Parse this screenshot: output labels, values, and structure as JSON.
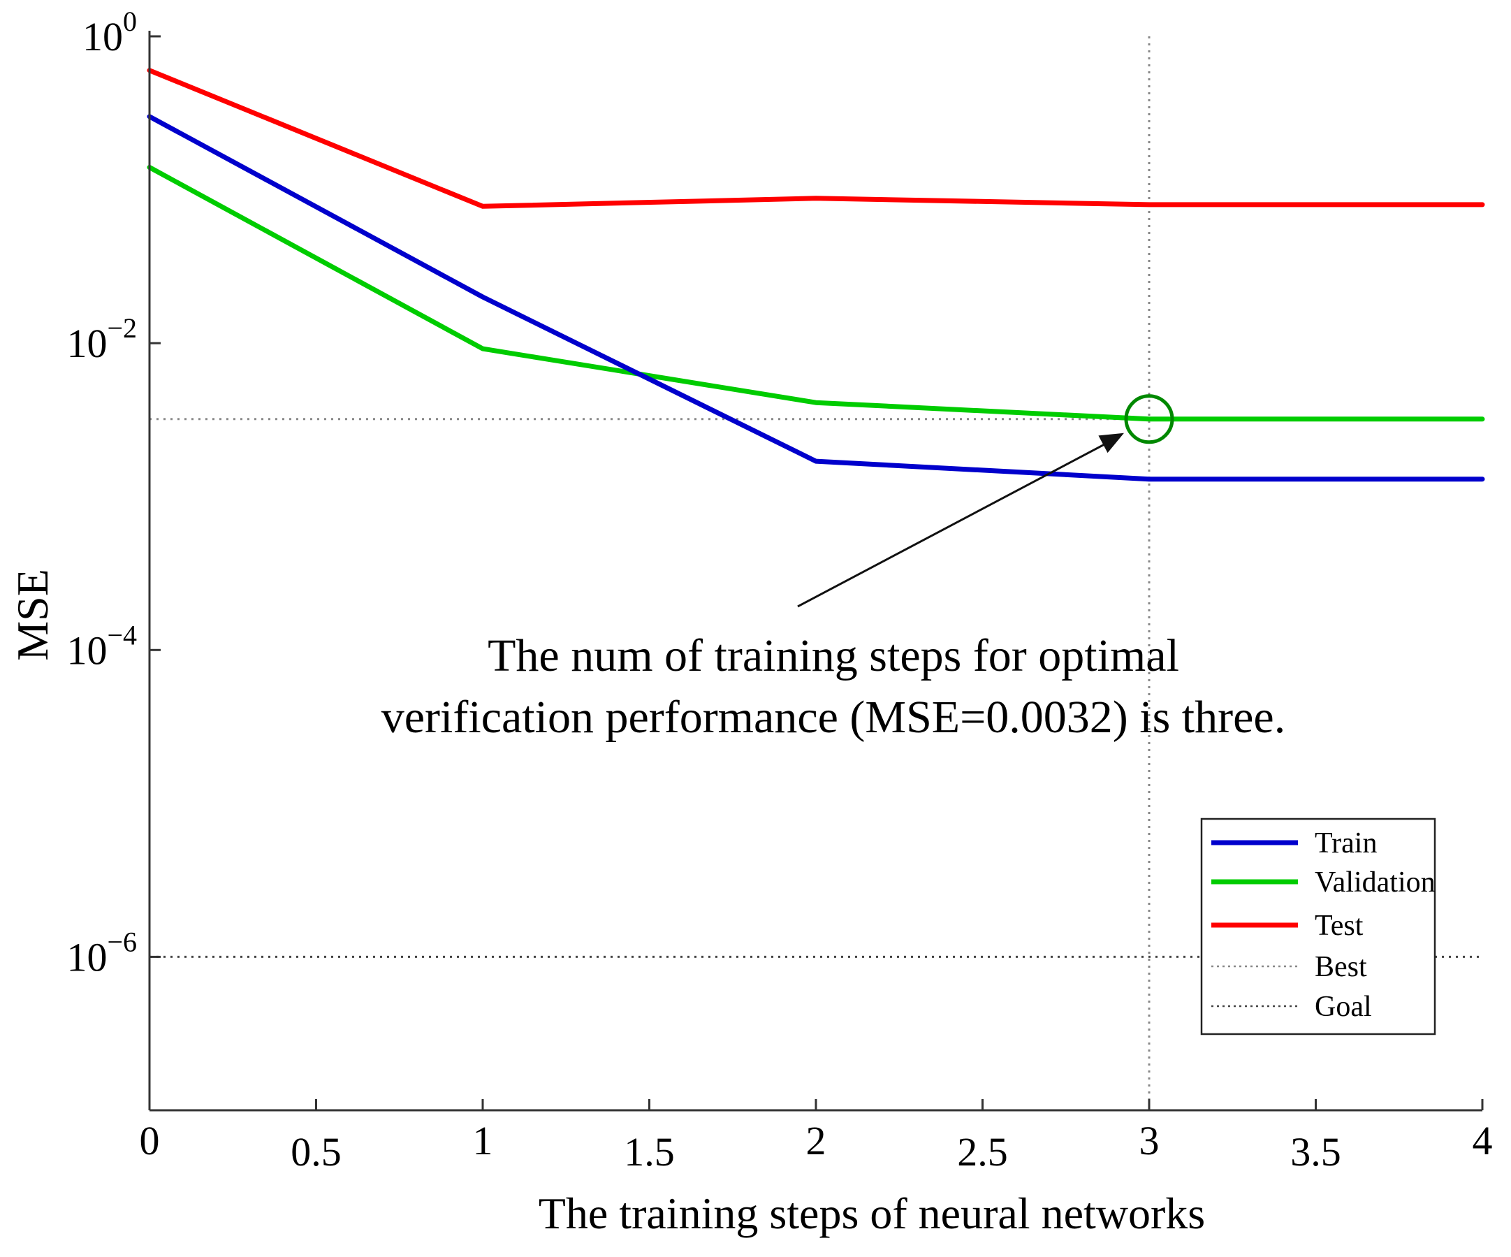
{
  "chart_data": {
    "type": "line",
    "x": [
      0,
      1,
      2,
      3,
      4
    ],
    "series": [
      {
        "name": "Train",
        "color": "#0000cc",
        "values": [
          0.3,
          0.02,
          0.0017,
          0.0013,
          0.0013
        ]
      },
      {
        "name": "Validation",
        "color": "#00cc00",
        "values": [
          0.14,
          0.0092,
          0.0041,
          0.0032,
          0.0032
        ]
      },
      {
        "name": "Test",
        "color": "#ff0000",
        "values": [
          0.6,
          0.078,
          0.088,
          0.08,
          0.08
        ]
      }
    ],
    "reference_lines": [
      {
        "name": "Best",
        "orientation": "both",
        "x": 3,
        "y": 0.0032,
        "color": "#888888",
        "style": "dotted"
      },
      {
        "name": "Goal",
        "orientation": "horizontal",
        "y": 1e-06,
        "color": "#444444",
        "style": "dotted"
      }
    ],
    "marker": {
      "x": 3,
      "y": 0.0032,
      "shape": "circle",
      "color": "#008800"
    },
    "xlabel": "The training steps of neural networks",
    "ylabel": "MSE",
    "xlim": [
      0,
      4
    ],
    "ylim": [
      1e-07,
      1
    ],
    "yscale": "log",
    "xticks": [
      0,
      0.5,
      1,
      1.5,
      2,
      2.5,
      3,
      3.5,
      4
    ],
    "xtick_labels": [
      "0",
      "0.5",
      "1",
      "1.5",
      "2",
      "2.5",
      "3",
      "3.5",
      "4"
    ],
    "yticks": [
      {
        "value": 1,
        "base": "10",
        "exp": "0"
      },
      {
        "value": 0.01,
        "base": "10",
        "exp": "−2"
      },
      {
        "value": 0.0001,
        "base": "10",
        "exp": "−4"
      },
      {
        "value": 1e-06,
        "base": "10",
        "exp": "−6"
      }
    ],
    "annotation": {
      "lines": [
        "The num of training steps for optimal",
        "verification performance (MSE=0.0032) is three."
      ],
      "points_to": {
        "x": 3,
        "y": 0.0032
      }
    },
    "legend": {
      "position": "bottom-right",
      "entries": [
        {
          "label": "Train",
          "color": "#0000cc",
          "style": "solid"
        },
        {
          "label": "Validation",
          "color": "#00cc00",
          "style": "solid"
        },
        {
          "label": "Test",
          "color": "#ff0000",
          "style": "solid"
        },
        {
          "label": "Best",
          "color": "#888888",
          "style": "dotted"
        },
        {
          "label": "Goal",
          "color": "#444444",
          "style": "dotted"
        }
      ]
    }
  }
}
